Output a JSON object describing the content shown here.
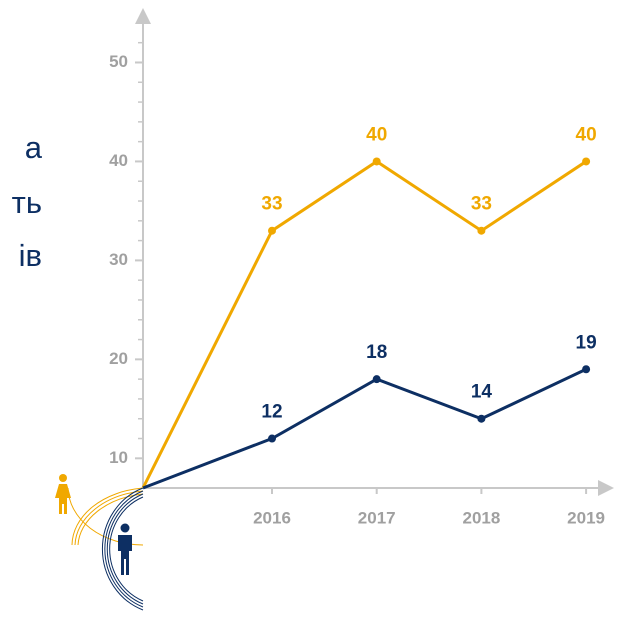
{
  "side_text": [
    "а",
    "ть",
    "ів"
  ],
  "chart_data": {
    "type": "line",
    "categories": [
      null,
      "2016",
      "2017",
      "2018",
      "2019"
    ],
    "series": [
      {
        "color": "#f0a800",
        "values": [
          7,
          33,
          40,
          33,
          40
        ]
      },
      {
        "color": "#0d2f63",
        "values": [
          7,
          12,
          18,
          14,
          19
        ]
      }
    ],
    "ylim": [
      7,
      55
    ],
    "yticks": [
      10,
      20,
      30,
      40,
      50
    ],
    "yticks_minor": [
      12,
      14,
      16,
      18,
      22,
      24,
      26,
      28,
      32,
      34,
      36,
      38,
      42,
      44,
      46,
      48,
      52,
      54
    ]
  }
}
